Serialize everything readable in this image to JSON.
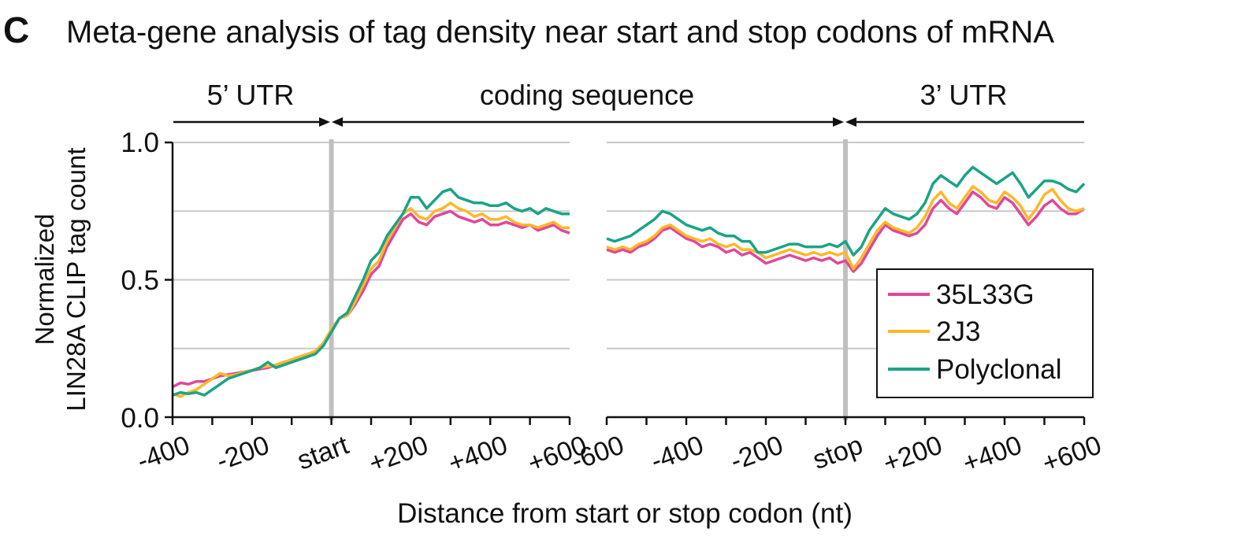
{
  "panel_letter": "C",
  "title": "Meta-gene analysis of tag density near start and stop codons of mRNA",
  "regions": [
    "5’ UTR",
    "coding sequence",
    "3’ UTR"
  ],
  "colors": {
    "35L33G": "#e0479a",
    "2J3": "#fbb829",
    "Polyclonal": "#1ba387",
    "grid": "#c8c8c8",
    "codon_line": "#c0c0c0"
  },
  "chart_data": [
    {
      "type": "line",
      "panel": "start",
      "x": [
        -400,
        -380,
        -360,
        -340,
        -320,
        -300,
        -280,
        -260,
        -240,
        -220,
        -200,
        -180,
        -160,
        -140,
        -120,
        -100,
        -80,
        -60,
        -40,
        -20,
        0,
        20,
        40,
        60,
        80,
        100,
        120,
        140,
        160,
        180,
        200,
        220,
        240,
        260,
        280,
        300,
        320,
        340,
        360,
        380,
        400,
        420,
        440,
        460,
        480,
        500,
        520,
        540,
        560,
        580,
        600
      ],
      "xticks": [
        -400,
        -200,
        0,
        200,
        400,
        600
      ],
      "xticklabels": [
        "-400",
        "-200",
        "start",
        "+200",
        "+400",
        "+600"
      ],
      "xlim": [
        -400,
        600
      ],
      "ylim": [
        0,
        1.0
      ],
      "yticks": [
        0.0,
        0.5,
        1.0
      ],
      "yticklabels": [
        "0.0",
        "0.5",
        "1.0"
      ],
      "ylabel_lines": [
        "Normalized",
        "LIN28A CLIP tag count"
      ],
      "grid": true,
      "series": [
        {
          "name": "35L33G",
          "values": [
            0.11,
            0.125,
            0.12,
            0.13,
            0.13,
            0.14,
            0.15,
            0.155,
            0.16,
            0.165,
            0.17,
            0.175,
            0.18,
            0.19,
            0.2,
            0.205,
            0.21,
            0.22,
            0.24,
            0.27,
            0.31,
            0.36,
            0.37,
            0.41,
            0.46,
            0.52,
            0.55,
            0.62,
            0.67,
            0.72,
            0.74,
            0.71,
            0.7,
            0.73,
            0.74,
            0.75,
            0.73,
            0.72,
            0.71,
            0.72,
            0.7,
            0.7,
            0.71,
            0.7,
            0.69,
            0.7,
            0.68,
            0.69,
            0.7,
            0.68,
            0.67
          ]
        },
        {
          "name": "2J3",
          "values": [
            0.085,
            0.075,
            0.09,
            0.1,
            0.12,
            0.14,
            0.16,
            0.15,
            0.155,
            0.165,
            0.17,
            0.18,
            0.185,
            0.19,
            0.2,
            0.21,
            0.22,
            0.23,
            0.24,
            0.27,
            0.32,
            0.36,
            0.37,
            0.42,
            0.48,
            0.54,
            0.57,
            0.64,
            0.69,
            0.74,
            0.76,
            0.73,
            0.72,
            0.75,
            0.76,
            0.78,
            0.76,
            0.75,
            0.73,
            0.74,
            0.72,
            0.72,
            0.73,
            0.71,
            0.7,
            0.7,
            0.69,
            0.7,
            0.71,
            0.69,
            0.69
          ]
        },
        {
          "name": "Polyclonal",
          "values": [
            0.08,
            0.09,
            0.085,
            0.09,
            0.08,
            0.1,
            0.12,
            0.14,
            0.15,
            0.16,
            0.17,
            0.18,
            0.2,
            0.18,
            0.19,
            0.2,
            0.21,
            0.22,
            0.23,
            0.26,
            0.31,
            0.36,
            0.38,
            0.44,
            0.5,
            0.57,
            0.6,
            0.66,
            0.7,
            0.74,
            0.8,
            0.8,
            0.76,
            0.79,
            0.82,
            0.83,
            0.8,
            0.79,
            0.78,
            0.78,
            0.77,
            0.77,
            0.78,
            0.76,
            0.75,
            0.76,
            0.74,
            0.76,
            0.75,
            0.74,
            0.74
          ]
        }
      ]
    },
    {
      "type": "line",
      "panel": "stop",
      "x": [
        -600,
        -580,
        -560,
        -540,
        -520,
        -500,
        -480,
        -460,
        -440,
        -420,
        -400,
        -380,
        -360,
        -340,
        -320,
        -300,
        -280,
        -260,
        -240,
        -220,
        -200,
        -180,
        -160,
        -140,
        -120,
        -100,
        -80,
        -60,
        -40,
        -20,
        0,
        20,
        40,
        60,
        80,
        100,
        120,
        140,
        160,
        180,
        200,
        220,
        240,
        260,
        280,
        300,
        320,
        340,
        360,
        380,
        400,
        420,
        440,
        460,
        480,
        500,
        520,
        540,
        560,
        580,
        600
      ],
      "xticks": [
        -600,
        -400,
        -200,
        0,
        200,
        400,
        600
      ],
      "xticklabels": [
        "-600",
        "-400",
        "-200",
        "stop",
        "+200",
        "+400",
        "+600"
      ],
      "xlim": [
        -600,
        600
      ],
      "ylim": [
        0,
        1.0
      ],
      "grid": true,
      "series": [
        {
          "name": "35L33G",
          "values": [
            0.61,
            0.6,
            0.61,
            0.6,
            0.62,
            0.63,
            0.65,
            0.68,
            0.69,
            0.67,
            0.65,
            0.64,
            0.62,
            0.63,
            0.62,
            0.6,
            0.61,
            0.59,
            0.6,
            0.58,
            0.56,
            0.57,
            0.58,
            0.59,
            0.58,
            0.57,
            0.58,
            0.57,
            0.58,
            0.56,
            0.57,
            0.53,
            0.56,
            0.61,
            0.66,
            0.7,
            0.68,
            0.67,
            0.66,
            0.67,
            0.7,
            0.76,
            0.79,
            0.76,
            0.74,
            0.78,
            0.82,
            0.8,
            0.77,
            0.76,
            0.8,
            0.78,
            0.74,
            0.7,
            0.73,
            0.77,
            0.79,
            0.76,
            0.74,
            0.74,
            0.76
          ]
        },
        {
          "name": "2J3",
          "values": [
            0.62,
            0.61,
            0.62,
            0.61,
            0.63,
            0.64,
            0.66,
            0.69,
            0.7,
            0.68,
            0.66,
            0.65,
            0.64,
            0.65,
            0.63,
            0.62,
            0.63,
            0.61,
            0.61,
            0.6,
            0.58,
            0.59,
            0.6,
            0.61,
            0.6,
            0.59,
            0.6,
            0.59,
            0.6,
            0.59,
            0.6,
            0.54,
            0.58,
            0.63,
            0.68,
            0.71,
            0.69,
            0.68,
            0.67,
            0.69,
            0.73,
            0.79,
            0.82,
            0.78,
            0.76,
            0.8,
            0.84,
            0.82,
            0.79,
            0.78,
            0.82,
            0.8,
            0.77,
            0.72,
            0.76,
            0.81,
            0.83,
            0.79,
            0.76,
            0.75,
            0.76
          ]
        },
        {
          "name": "Polyclonal",
          "values": [
            0.65,
            0.64,
            0.65,
            0.66,
            0.68,
            0.7,
            0.72,
            0.75,
            0.74,
            0.72,
            0.7,
            0.69,
            0.68,
            0.69,
            0.67,
            0.66,
            0.66,
            0.64,
            0.64,
            0.6,
            0.6,
            0.61,
            0.62,
            0.63,
            0.63,
            0.62,
            0.62,
            0.62,
            0.63,
            0.62,
            0.64,
            0.59,
            0.62,
            0.68,
            0.72,
            0.76,
            0.74,
            0.73,
            0.72,
            0.74,
            0.78,
            0.85,
            0.88,
            0.86,
            0.84,
            0.88,
            0.91,
            0.89,
            0.87,
            0.85,
            0.87,
            0.89,
            0.85,
            0.8,
            0.83,
            0.86,
            0.86,
            0.85,
            0.83,
            0.82,
            0.85
          ]
        }
      ]
    }
  ],
  "xlabel": "Distance from start or stop codon (nt)",
  "legend": {
    "placement": "right-bottom",
    "entries": [
      "35L33G",
      "2J3",
      "Polyclonal"
    ]
  }
}
